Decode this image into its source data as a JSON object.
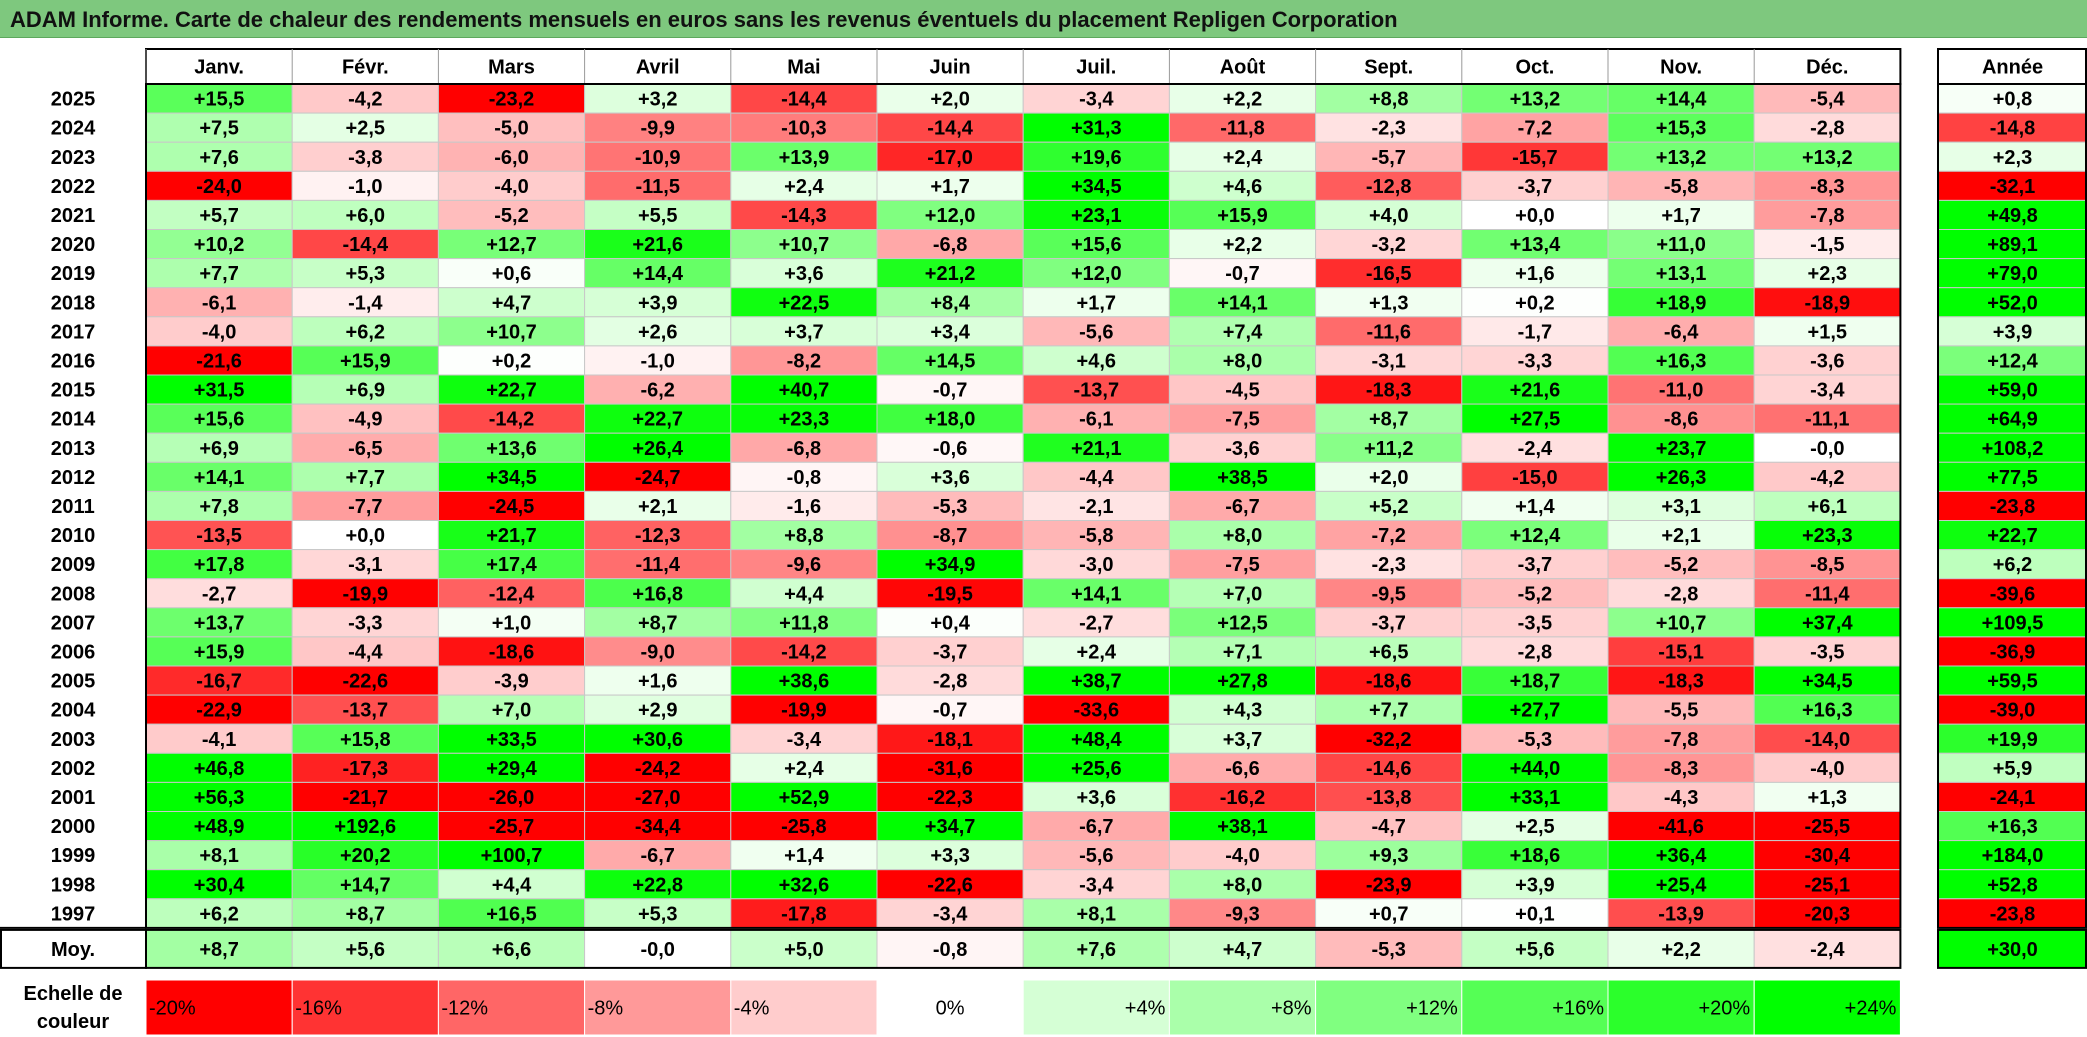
{
  "title": "ADAM Informe. Carte de chaleur des rendements mensuels en euros sans les revenus éventuels du placement Repligen Corporation",
  "chart_data": {
    "type": "heatmap",
    "months": [
      "Janv.",
      "Févr.",
      "Mars",
      "Avril",
      "Mai",
      "Juin",
      "Juil.",
      "Août",
      "Sept.",
      "Oct.",
      "Nov.",
      "Déc."
    ],
    "year_header": "Année",
    "rows": [
      {
        "label": "2025",
        "values": [
          "+15,5",
          "-4,2",
          "-23,2",
          "+3,2",
          "-14,4",
          "+2,0",
          "-3,4",
          "+2,2",
          "+8,8",
          "+13,2",
          "+14,4",
          "-5,4"
        ],
        "year": "+0,8"
      },
      {
        "label": "2024",
        "values": [
          "+7,5",
          "+2,5",
          "-5,0",
          "-9,9",
          "-10,3",
          "-14,4",
          "+31,3",
          "-11,8",
          "-2,3",
          "-7,2",
          "+15,3",
          "-2,8"
        ],
        "year": "-14,8"
      },
      {
        "label": "2023",
        "values": [
          "+7,6",
          "-3,8",
          "-6,0",
          "-10,9",
          "+13,9",
          "-17,0",
          "+19,6",
          "+2,4",
          "-5,7",
          "-15,7",
          "+13,2",
          "+13,2"
        ],
        "year": "+2,3"
      },
      {
        "label": "2022",
        "values": [
          "-24,0",
          "-1,0",
          "-4,0",
          "-11,5",
          "+2,4",
          "+1,7",
          "+34,5",
          "+4,6",
          "-12,8",
          "-3,7",
          "-5,8",
          "-8,3"
        ],
        "year": "-32,1"
      },
      {
        "label": "2021",
        "values": [
          "+5,7",
          "+6,0",
          "-5,2",
          "+5,5",
          "-14,3",
          "+12,0",
          "+23,1",
          "+15,9",
          "+4,0",
          "+0,0",
          "+1,7",
          "-7,8"
        ],
        "year": "+49,8"
      },
      {
        "label": "2020",
        "values": [
          "+10,2",
          "-14,4",
          "+12,7",
          "+21,6",
          "+10,7",
          "-6,8",
          "+15,6",
          "+2,2",
          "-3,2",
          "+13,4",
          "+11,0",
          "-1,5"
        ],
        "year": "+89,1"
      },
      {
        "label": "2019",
        "values": [
          "+7,7",
          "+5,3",
          "+0,6",
          "+14,4",
          "+3,6",
          "+21,2",
          "+12,0",
          "-0,7",
          "-16,5",
          "+1,6",
          "+13,1",
          "+2,3"
        ],
        "year": "+79,0"
      },
      {
        "label": "2018",
        "values": [
          "-6,1",
          "-1,4",
          "+4,7",
          "+3,9",
          "+22,5",
          "+8,4",
          "+1,7",
          "+14,1",
          "+1,3",
          "+0,2",
          "+18,9",
          "-18,9"
        ],
        "year": "+52,0"
      },
      {
        "label": "2017",
        "values": [
          "-4,0",
          "+6,2",
          "+10,7",
          "+2,6",
          "+3,7",
          "+3,4",
          "-5,6",
          "+7,4",
          "-11,6",
          "-1,7",
          "-6,4",
          "+1,5"
        ],
        "year": "+3,9"
      },
      {
        "label": "2016",
        "values": [
          "-21,6",
          "+15,9",
          "+0,2",
          "-1,0",
          "-8,2",
          "+14,5",
          "+4,6",
          "+8,0",
          "-3,1",
          "-3,3",
          "+16,3",
          "-3,6"
        ],
        "year": "+12,4"
      },
      {
        "label": "2015",
        "values": [
          "+31,5",
          "+6,9",
          "+22,7",
          "-6,2",
          "+40,7",
          "-0,7",
          "-13,7",
          "-4,5",
          "-18,3",
          "+21,6",
          "-11,0",
          "-3,4"
        ],
        "year": "+59,0"
      },
      {
        "label": "2014",
        "values": [
          "+15,6",
          "-4,9",
          "-14,2",
          "+22,7",
          "+23,3",
          "+18,0",
          "-6,1",
          "-7,5",
          "+8,7",
          "+27,5",
          "-8,6",
          "-11,1"
        ],
        "year": "+64,9"
      },
      {
        "label": "2013",
        "values": [
          "+6,9",
          "-6,5",
          "+13,6",
          "+26,4",
          "-6,8",
          "-0,6",
          "+21,1",
          "-3,6",
          "+11,2",
          "-2,4",
          "+23,7",
          "-0,0"
        ],
        "year": "+108,2"
      },
      {
        "label": "2012",
        "values": [
          "+14,1",
          "+7,7",
          "+34,5",
          "-24,7",
          "-0,8",
          "+3,6",
          "-4,4",
          "+38,5",
          "+2,0",
          "-15,0",
          "+26,3",
          "-4,2"
        ],
        "year": "+77,5"
      },
      {
        "label": "2011",
        "values": [
          "+7,8",
          "-7,7",
          "-24,5",
          "+2,1",
          "-1,6",
          "-5,3",
          "-2,1",
          "-6,7",
          "+5,2",
          "+1,4",
          "+3,1",
          "+6,1"
        ],
        "year": "-23,8"
      },
      {
        "label": "2010",
        "values": [
          "-13,5",
          "+0,0",
          "+21,7",
          "-12,3",
          "+8,8",
          "-8,7",
          "-5,8",
          "+8,0",
          "-7,2",
          "+12,4",
          "+2,1",
          "+23,3"
        ],
        "year": "+22,7"
      },
      {
        "label": "2009",
        "values": [
          "+17,8",
          "-3,1",
          "+17,4",
          "-11,4",
          "-9,6",
          "+34,9",
          "-3,0",
          "-7,5",
          "-2,3",
          "-3,7",
          "-5,2",
          "-8,5"
        ],
        "year": "+6,2"
      },
      {
        "label": "2008",
        "values": [
          "-2,7",
          "-19,9",
          "-12,4",
          "+16,8",
          "+4,4",
          "-19,5",
          "+14,1",
          "+7,0",
          "-9,5",
          "-5,2",
          "-2,8",
          "-11,4"
        ],
        "year": "-39,6"
      },
      {
        "label": "2007",
        "values": [
          "+13,7",
          "-3,3",
          "+1,0",
          "+8,7",
          "+11,8",
          "+0,4",
          "-2,7",
          "+12,5",
          "-3,7",
          "-3,5",
          "+10,7",
          "+37,4"
        ],
        "year": "+109,5"
      },
      {
        "label": "2006",
        "values": [
          "+15,9",
          "-4,4",
          "-18,6",
          "-9,0",
          "-14,2",
          "-3,7",
          "+2,4",
          "+7,1",
          "+6,5",
          "-2,8",
          "-15,1",
          "-3,5"
        ],
        "year": "-36,9"
      },
      {
        "label": "2005",
        "values": [
          "-16,7",
          "-22,6",
          "-3,9",
          "+1,6",
          "+38,6",
          "-2,8",
          "+38,7",
          "+27,8",
          "-18,6",
          "+18,7",
          "-18,3",
          "+34,5"
        ],
        "year": "+59,5"
      },
      {
        "label": "2004",
        "values": [
          "-22,9",
          "-13,7",
          "+7,0",
          "+2,9",
          "-19,9",
          "-0,7",
          "-33,6",
          "+4,3",
          "+7,7",
          "+27,7",
          "-5,5",
          "+16,3"
        ],
        "year": "-39,0"
      },
      {
        "label": "2003",
        "values": [
          "-4,1",
          "+15,8",
          "+33,5",
          "+30,6",
          "-3,4",
          "-18,1",
          "+48,4",
          "+3,7",
          "-32,2",
          "-5,3",
          "-7,8",
          "-14,0"
        ],
        "year": "+19,9"
      },
      {
        "label": "2002",
        "values": [
          "+46,8",
          "-17,3",
          "+29,4",
          "-24,2",
          "+2,4",
          "-31,6",
          "+25,6",
          "-6,6",
          "-14,6",
          "+44,0",
          "-8,3",
          "-4,0"
        ],
        "year": "+5,9"
      },
      {
        "label": "2001",
        "values": [
          "+56,3",
          "-21,7",
          "-26,0",
          "-27,0",
          "+52,9",
          "-22,3",
          "+3,6",
          "-16,2",
          "-13,8",
          "+33,1",
          "-4,3",
          "+1,3"
        ],
        "year": "-24,1"
      },
      {
        "label": "2000",
        "values": [
          "+48,9",
          "+192,6",
          "-25,7",
          "-34,4",
          "-25,8",
          "+34,7",
          "-6,7",
          "+38,1",
          "-4,7",
          "+2,5",
          "-41,6",
          "-25,5"
        ],
        "year": "+16,3"
      },
      {
        "label": "1999",
        "values": [
          "+8,1",
          "+20,2",
          "+100,7",
          "-6,7",
          "+1,4",
          "+3,3",
          "-5,6",
          "-4,0",
          "+9,3",
          "+18,6",
          "+36,4",
          "-30,4"
        ],
        "year": "+184,0"
      },
      {
        "label": "1998",
        "values": [
          "+30,4",
          "+14,7",
          "+4,4",
          "+22,8",
          "+32,6",
          "-22,6",
          "-3,4",
          "+8,0",
          "-23,9",
          "+3,9",
          "+25,4",
          "-25,1"
        ],
        "year": "+52,8"
      },
      {
        "label": "1997",
        "values": [
          "+6,2",
          "+8,7",
          "+16,5",
          "+5,3",
          "-17,8",
          "-3,4",
          "+8,1",
          "-9,3",
          "+0,7",
          "+0,1",
          "-13,9",
          "-20,3"
        ],
        "year": "-23,8"
      }
    ],
    "average": {
      "label": "Moy.",
      "values": [
        "+8,7",
        "+5,6",
        "+6,6",
        "-0,0",
        "+5,0",
        "-0,8",
        "+7,6",
        "+4,7",
        "-5,3",
        "+5,6",
        "+2,2",
        "-2,4"
      ],
      "year": "+30,0"
    },
    "scale": {
      "label_line1": "Echelle de",
      "label_line2": "couleur",
      "stops": [
        "-20%",
        "-16%",
        "-12%",
        "-8%",
        "-4%",
        "0%",
        "+4%",
        "+8%",
        "+12%",
        "+16%",
        "+20%",
        "+24%"
      ]
    },
    "colors": {
      "negative": "#ff0000",
      "neutral": "#ffffff",
      "positive": "#00ff00",
      "title_bar": "#7ec87e"
    }
  }
}
